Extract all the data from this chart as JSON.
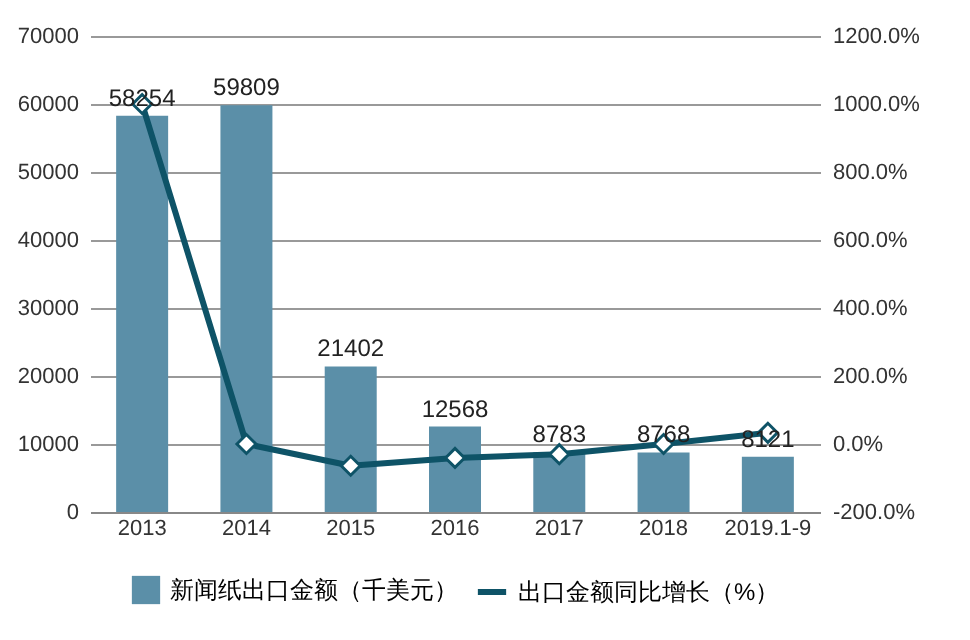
{
  "chart_data": {
    "type": "bar",
    "categories": [
      "2013",
      "2014",
      "2015",
      "2016",
      "2017",
      "2018",
      "2019.1-9"
    ],
    "series": [
      {
        "name": "新闻纸出口金额（千美元）",
        "color": "#5b8fa8",
        "values": [
          58254,
          59809,
          21402,
          12568,
          8783,
          8768,
          8121
        ],
        "value_labels": [
          "58254",
          "59809",
          "21402",
          "12568",
          "8783",
          "8768",
          "8121"
        ]
      },
      {
        "name": "出口金额同比增长（%）",
        "type": "line",
        "axis": "y2",
        "color": "#0e5367",
        "values": [
          1000,
          0,
          -64,
          -41,
          -30,
          0,
          33
        ]
      }
    ],
    "ylim": [
      0,
      70000
    ],
    "yticks": [
      0,
      10000,
      20000,
      30000,
      40000,
      50000,
      60000,
      70000
    ],
    "y2lim": [
      -200,
      1200
    ],
    "y2ticks": [
      {
        "value": -200,
        "label": "-200.0%"
      },
      {
        "value": 0,
        "label": "0.0%"
      },
      {
        "value": 200,
        "label": "200.0%"
      },
      {
        "value": 400,
        "label": "400.0%"
      },
      {
        "value": 600,
        "label": "600.0%"
      },
      {
        "value": 800,
        "label": "800.0%"
      },
      {
        "value": 1000,
        "label": "1000.0%"
      },
      {
        "value": 1200,
        "label": "1200.0%"
      }
    ],
    "grid": "y",
    "legend": "bottom",
    "marker": "diamond",
    "line_style": "solid"
  }
}
